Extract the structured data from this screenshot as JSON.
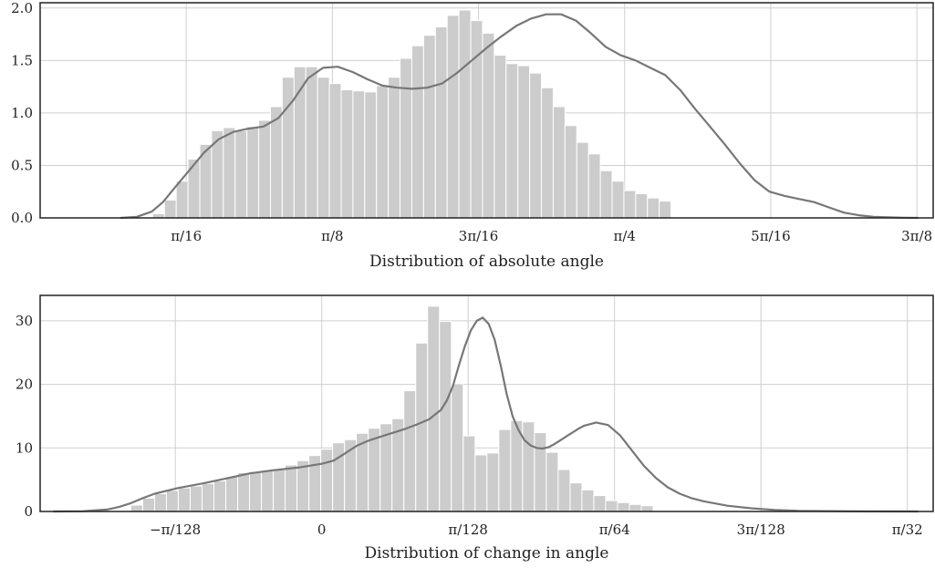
{
  "chart_data": [
    {
      "type": "bar",
      "xlabel": "Distribution of absolute angle",
      "ylabel": "",
      "xlim": [
        0.0,
        1.2
      ],
      "ylim": [
        0.0,
        2.05
      ],
      "grid": true,
      "x_ticks": [
        {
          "value": 0.19635,
          "label": "π/16"
        },
        {
          "value": 0.3927,
          "label": "π/8"
        },
        {
          "value": 0.58905,
          "label": "3π/16"
        },
        {
          "value": 0.7854,
          "label": "π/4"
        },
        {
          "value": 0.98175,
          "label": "5π/16"
        },
        {
          "value": 1.1781,
          "label": "3π/8"
        }
      ],
      "y_ticks": [
        {
          "value": 0.0,
          "label": "0.0"
        },
        {
          "value": 0.5,
          "label": "0.5"
        },
        {
          "value": 1.0,
          "label": "1.0"
        },
        {
          "value": 1.5,
          "label": "1.5"
        },
        {
          "value": 2.0,
          "label": "2.0"
        }
      ],
      "bin_start": 0.1512,
      "bin_width": 0.01583,
      "values": [
        0.04,
        0.17,
        0.35,
        0.56,
        0.7,
        0.83,
        0.86,
        0.83,
        0.87,
        0.93,
        1.06,
        1.34,
        1.44,
        1.44,
        1.34,
        1.28,
        1.22,
        1.21,
        1.2,
        1.26,
        1.34,
        1.52,
        1.64,
        1.74,
        1.82,
        1.93,
        1.98,
        1.88,
        1.76,
        1.55,
        1.47,
        1.45,
        1.38,
        1.24,
        1.06,
        0.88,
        0.72,
        0.61,
        0.45,
        0.35,
        0.26,
        0.23,
        0.19,
        0.16
      ],
      "kde": {
        "x": [
          0.108,
          0.13,
          0.15,
          0.165,
          0.18,
          0.2,
          0.22,
          0.24,
          0.26,
          0.28,
          0.3,
          0.32,
          0.34,
          0.36,
          0.38,
          0.4,
          0.42,
          0.44,
          0.46,
          0.48,
          0.5,
          0.52,
          0.54,
          0.56,
          0.58,
          0.6,
          0.62,
          0.64,
          0.66,
          0.68,
          0.7,
          0.72,
          0.74,
          0.76,
          0.78,
          0.8,
          0.82,
          0.84,
          0.86,
          0.88,
          0.9,
          0.92,
          0.94,
          0.96,
          0.98,
          1.0,
          1.02,
          1.04,
          1.06,
          1.08,
          1.1,
          1.12,
          1.14,
          1.16,
          1.18
        ],
        "y": [
          0.0,
          0.01,
          0.06,
          0.15,
          0.28,
          0.45,
          0.62,
          0.75,
          0.82,
          0.85,
          0.87,
          0.95,
          1.12,
          1.33,
          1.43,
          1.44,
          1.39,
          1.32,
          1.26,
          1.24,
          1.23,
          1.24,
          1.28,
          1.38,
          1.5,
          1.62,
          1.73,
          1.83,
          1.9,
          1.94,
          1.94,
          1.88,
          1.76,
          1.63,
          1.55,
          1.5,
          1.43,
          1.36,
          1.22,
          1.04,
          0.87,
          0.7,
          0.52,
          0.36,
          0.25,
          0.21,
          0.18,
          0.15,
          0.1,
          0.05,
          0.025,
          0.01,
          0.005,
          0.002,
          0.0
        ]
      }
    },
    {
      "type": "bar",
      "xlabel": "Distribution of change in angle",
      "ylabel": "",
      "xlim": [
        -0.0472,
        0.1025
      ],
      "ylim": [
        0.0,
        34.0
      ],
      "grid": true,
      "x_ticks": [
        {
          "value": -0.024544,
          "label": "−π/128"
        },
        {
          "value": 0.0,
          "label": "0"
        },
        {
          "value": 0.024544,
          "label": "π/128"
        },
        {
          "value": 0.049087,
          "label": "π/64"
        },
        {
          "value": 0.073631,
          "label": "3π/128"
        },
        {
          "value": 0.098175,
          "label": "π/32"
        }
      ],
      "y_ticks": [
        {
          "value": 0,
          "label": "0"
        },
        {
          "value": 10,
          "label": "10"
        },
        {
          "value": 20,
          "label": "20"
        },
        {
          "value": 30,
          "label": "30"
        }
      ],
      "bin_start": -0.032,
      "bin_width": 0.00199,
      "values": [
        1.0,
        2.1,
        2.8,
        3.3,
        3.7,
        4.0,
        4.4,
        4.8,
        5.5,
        6.1,
        6.3,
        6.5,
        6.6,
        7.3,
        8.0,
        8.8,
        9.8,
        10.8,
        11.3,
        12.3,
        13.1,
        13.8,
        14.6,
        19.0,
        26.5,
        32.3,
        29.9,
        20.1,
        11.9,
        8.9,
        9.2,
        12.9,
        14.3,
        14.1,
        12.4,
        9.3,
        6.6,
        4.5,
        3.4,
        2.5,
        1.7,
        1.4,
        1.1,
        0.9
      ],
      "kde": {
        "x": [
          -0.045,
          -0.04,
          -0.036,
          -0.034,
          -0.032,
          -0.03,
          -0.028,
          -0.024,
          -0.02,
          -0.016,
          -0.012,
          -0.008,
          -0.004,
          0.0,
          0.002,
          0.004,
          0.006,
          0.008,
          0.01,
          0.012,
          0.014,
          0.016,
          0.018,
          0.02,
          0.021,
          0.022,
          0.023,
          0.024,
          0.025,
          0.026,
          0.027,
          0.028,
          0.029,
          0.03,
          0.031,
          0.032,
          0.033,
          0.034,
          0.035,
          0.036,
          0.037,
          0.038,
          0.039,
          0.04,
          0.041,
          0.042,
          0.043,
          0.044,
          0.046,
          0.048,
          0.05,
          0.052,
          0.054,
          0.056,
          0.058,
          0.06,
          0.062,
          0.064,
          0.068,
          0.072,
          0.076,
          0.08,
          0.09,
          0.1
        ],
        "y": [
          0.0,
          0.05,
          0.3,
          0.7,
          1.3,
          2.1,
          2.8,
          3.7,
          4.4,
          5.2,
          6.0,
          6.5,
          6.9,
          7.5,
          8.0,
          9.2,
          10.4,
          11.2,
          11.8,
          12.4,
          13.0,
          13.7,
          14.5,
          16.0,
          17.5,
          19.8,
          23.0,
          26.0,
          28.5,
          30.0,
          30.5,
          29.5,
          27.0,
          23.0,
          18.5,
          15.0,
          12.8,
          11.2,
          10.4,
          10.0,
          9.9,
          10.1,
          10.6,
          11.2,
          11.8,
          12.4,
          13.0,
          13.5,
          14.0,
          13.6,
          12.0,
          9.6,
          7.2,
          5.3,
          3.8,
          2.8,
          2.1,
          1.6,
          0.9,
          0.5,
          0.25,
          0.1,
          0.02,
          0.0
        ]
      }
    }
  ]
}
